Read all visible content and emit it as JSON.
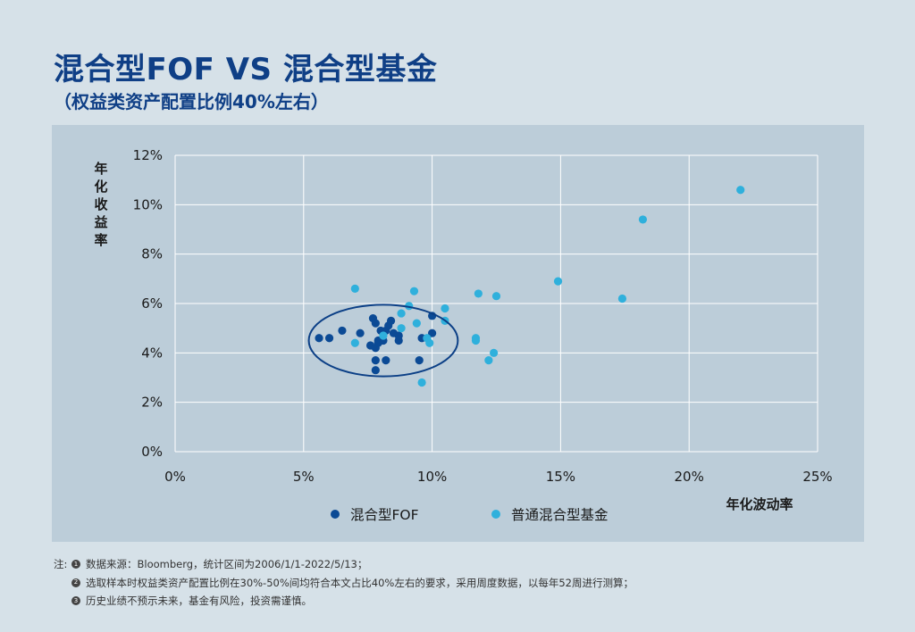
{
  "header": {
    "title": "混合型FOF VS 混合型基金",
    "subtitle": "（权益类资产配置比例40%左右）"
  },
  "chart_data": {
    "type": "scatter",
    "title": "",
    "xlabel": "年化波动率",
    "ylabel": "年化收益率",
    "xlim": [
      0,
      25
    ],
    "ylim": [
      0,
      12
    ],
    "x_ticks": [
      "0%",
      "5%",
      "10%",
      "15%",
      "20%",
      "25%"
    ],
    "y_ticks": [
      "0%",
      "2%",
      "4%",
      "6%",
      "8%",
      "10%",
      "12%"
    ],
    "grid": true,
    "legend_position": "bottom-center",
    "series": [
      {
        "name": "混合型FOF",
        "color": "#0b4a95",
        "x": [
          5.6,
          6.0,
          6.5,
          7.2,
          7.6,
          7.7,
          7.8,
          7.8,
          7.9,
          7.9,
          8.0,
          8.1,
          8.2,
          8.3,
          8.4,
          8.5,
          8.7,
          8.7,
          9.5,
          9.6,
          10.0,
          10.0,
          7.8,
          8.2,
          7.8
        ],
        "y": [
          4.6,
          4.6,
          4.9,
          4.8,
          4.3,
          5.4,
          5.2,
          4.2,
          4.5,
          4.4,
          4.9,
          4.5,
          4.9,
          5.1,
          5.3,
          4.8,
          4.5,
          4.7,
          3.7,
          4.6,
          5.5,
          4.8,
          3.7,
          3.7,
          3.3
        ]
      },
      {
        "name": "普通混合型基金",
        "color": "#2fb0dc",
        "x": [
          7.0,
          7.0,
          8.1,
          8.8,
          8.8,
          9.1,
          9.3,
          9.4,
          9.6,
          9.8,
          9.9,
          10.5,
          10.5,
          11.7,
          11.7,
          11.8,
          12.2,
          12.4,
          12.5,
          14.9,
          17.4,
          18.2,
          22.0
        ],
        "y": [
          6.6,
          4.4,
          4.7,
          5.6,
          5.0,
          5.9,
          6.5,
          5.2,
          2.8,
          4.6,
          4.4,
          5.3,
          5.8,
          4.6,
          4.5,
          6.4,
          3.7,
          4.0,
          6.3,
          6.9,
          6.2,
          9.4,
          10.6
        ]
      }
    ],
    "annotations": [
      {
        "type": "ellipse",
        "label": "",
        "center_x": 8.1,
        "center_y": 4.5,
        "rx_units": 2.9,
        "ry_units": 1.45,
        "color": "#0b3f86"
      }
    ]
  },
  "notes": {
    "prefix": "注:",
    "items": [
      {
        "num": "1",
        "text": "数据来源：Bloomberg，统计区间为2006/1/1-2022/5/13；"
      },
      {
        "num": "2",
        "text": "选取样本时权益类资产配置比例在30%-50%间均符合本文占比40%左右的要求，采用周度数据，以每年52周进行测算；"
      },
      {
        "num": "3",
        "text": "历史业绩不预示未来，基金有风险，投资需谨慎。"
      }
    ]
  }
}
